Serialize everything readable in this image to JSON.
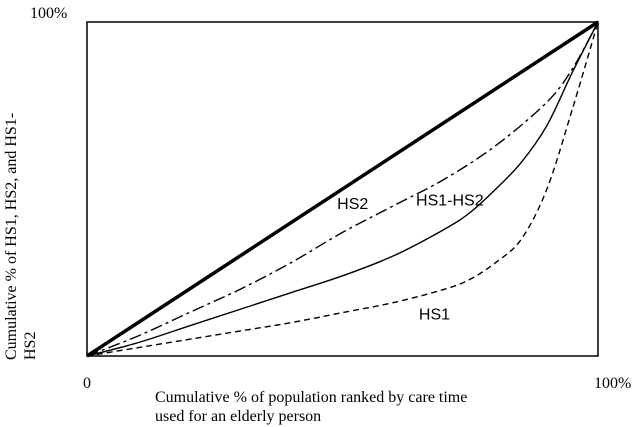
{
  "chart_data": {
    "type": "line",
    "xlabel_lines": [
      "Cumulative % of population ranked by care time",
      "used for an elderly person"
    ],
    "ylabel_lines": [
      "Cumulative % of HS1, HS2, and HS1-",
      "HS2"
    ],
    "xlim": [
      0,
      100
    ],
    "ylim": [
      0,
      100
    ],
    "x_ticks": [
      {
        "value": 0,
        "label": "0"
      },
      {
        "value": 100,
        "label": "100%"
      }
    ],
    "y_ticks": [
      {
        "value": 100,
        "label": "100%"
      }
    ],
    "grid": false,
    "series": [
      {
        "name": "HS2",
        "style": "solid-thick",
        "x": [
          0,
          100
        ],
        "y": [
          0,
          100
        ]
      },
      {
        "name": "HS1-HS2",
        "style": "dash-dot",
        "x": [
          0,
          10,
          20,
          30,
          40,
          50,
          60,
          70,
          80,
          90,
          95,
          100
        ],
        "y": [
          0,
          6,
          13,
          20,
          28,
          37,
          45,
          53,
          63,
          76,
          86,
          100
        ]
      },
      {
        "name": "",
        "style": "solid-thin",
        "x": [
          0,
          10,
          20,
          30,
          40,
          50,
          60,
          70,
          75,
          80,
          85,
          90,
          95,
          100
        ],
        "y": [
          0,
          4,
          9,
          14,
          19,
          24,
          30,
          38,
          43,
          50,
          58,
          69,
          85,
          100
        ]
      },
      {
        "name": "HS1",
        "style": "dashed",
        "x": [
          0,
          10,
          20,
          30,
          40,
          50,
          60,
          70,
          75,
          80,
          85,
          90,
          95,
          100
        ],
        "y": [
          0,
          2.5,
          5,
          7.5,
          10,
          13,
          16,
          20,
          23,
          28,
          35,
          50,
          74,
          100
        ]
      }
    ],
    "annotations": [
      {
        "text": "HS2",
        "x": 52,
        "y": 44
      },
      {
        "text": "HS1-HS2",
        "x": 71,
        "y": 45
      },
      {
        "text": "HS1",
        "x": 68,
        "y": 11
      }
    ]
  }
}
